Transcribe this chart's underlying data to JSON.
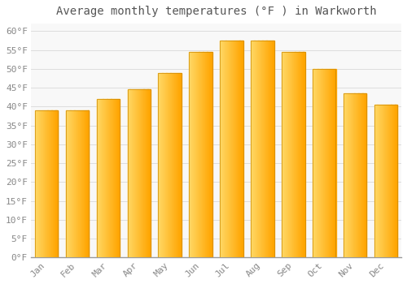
{
  "title": "Average monthly temperatures (°F ) in Warkworth",
  "months": [
    "Jan",
    "Feb",
    "Mar",
    "Apr",
    "May",
    "Jun",
    "Jul",
    "Aug",
    "Sep",
    "Oct",
    "Nov",
    "Dec"
  ],
  "values": [
    39,
    39,
    42,
    44.5,
    49,
    54.5,
    57.5,
    57.5,
    54.5,
    50,
    43.5,
    40.5
  ],
  "bar_color_left": "#FFD966",
  "bar_color_right": "#FFA500",
  "bar_edge_color": "#CC8800",
  "background_color": "#FFFFFF",
  "plot_bg_color": "#F8F8F8",
  "grid_color": "#DDDDDD",
  "text_color": "#888888",
  "title_color": "#555555",
  "ylim": [
    0,
    62
  ],
  "yticks": [
    0,
    5,
    10,
    15,
    20,
    25,
    30,
    35,
    40,
    45,
    50,
    55,
    60
  ],
  "ytick_labels": [
    "0°F",
    "5°F",
    "10°F",
    "15°F",
    "20°F",
    "25°F",
    "30°F",
    "35°F",
    "40°F",
    "45°F",
    "50°F",
    "55°F",
    "60°F"
  ],
  "title_fontsize": 10,
  "tick_fontsize": 8,
  "bar_width": 0.75
}
